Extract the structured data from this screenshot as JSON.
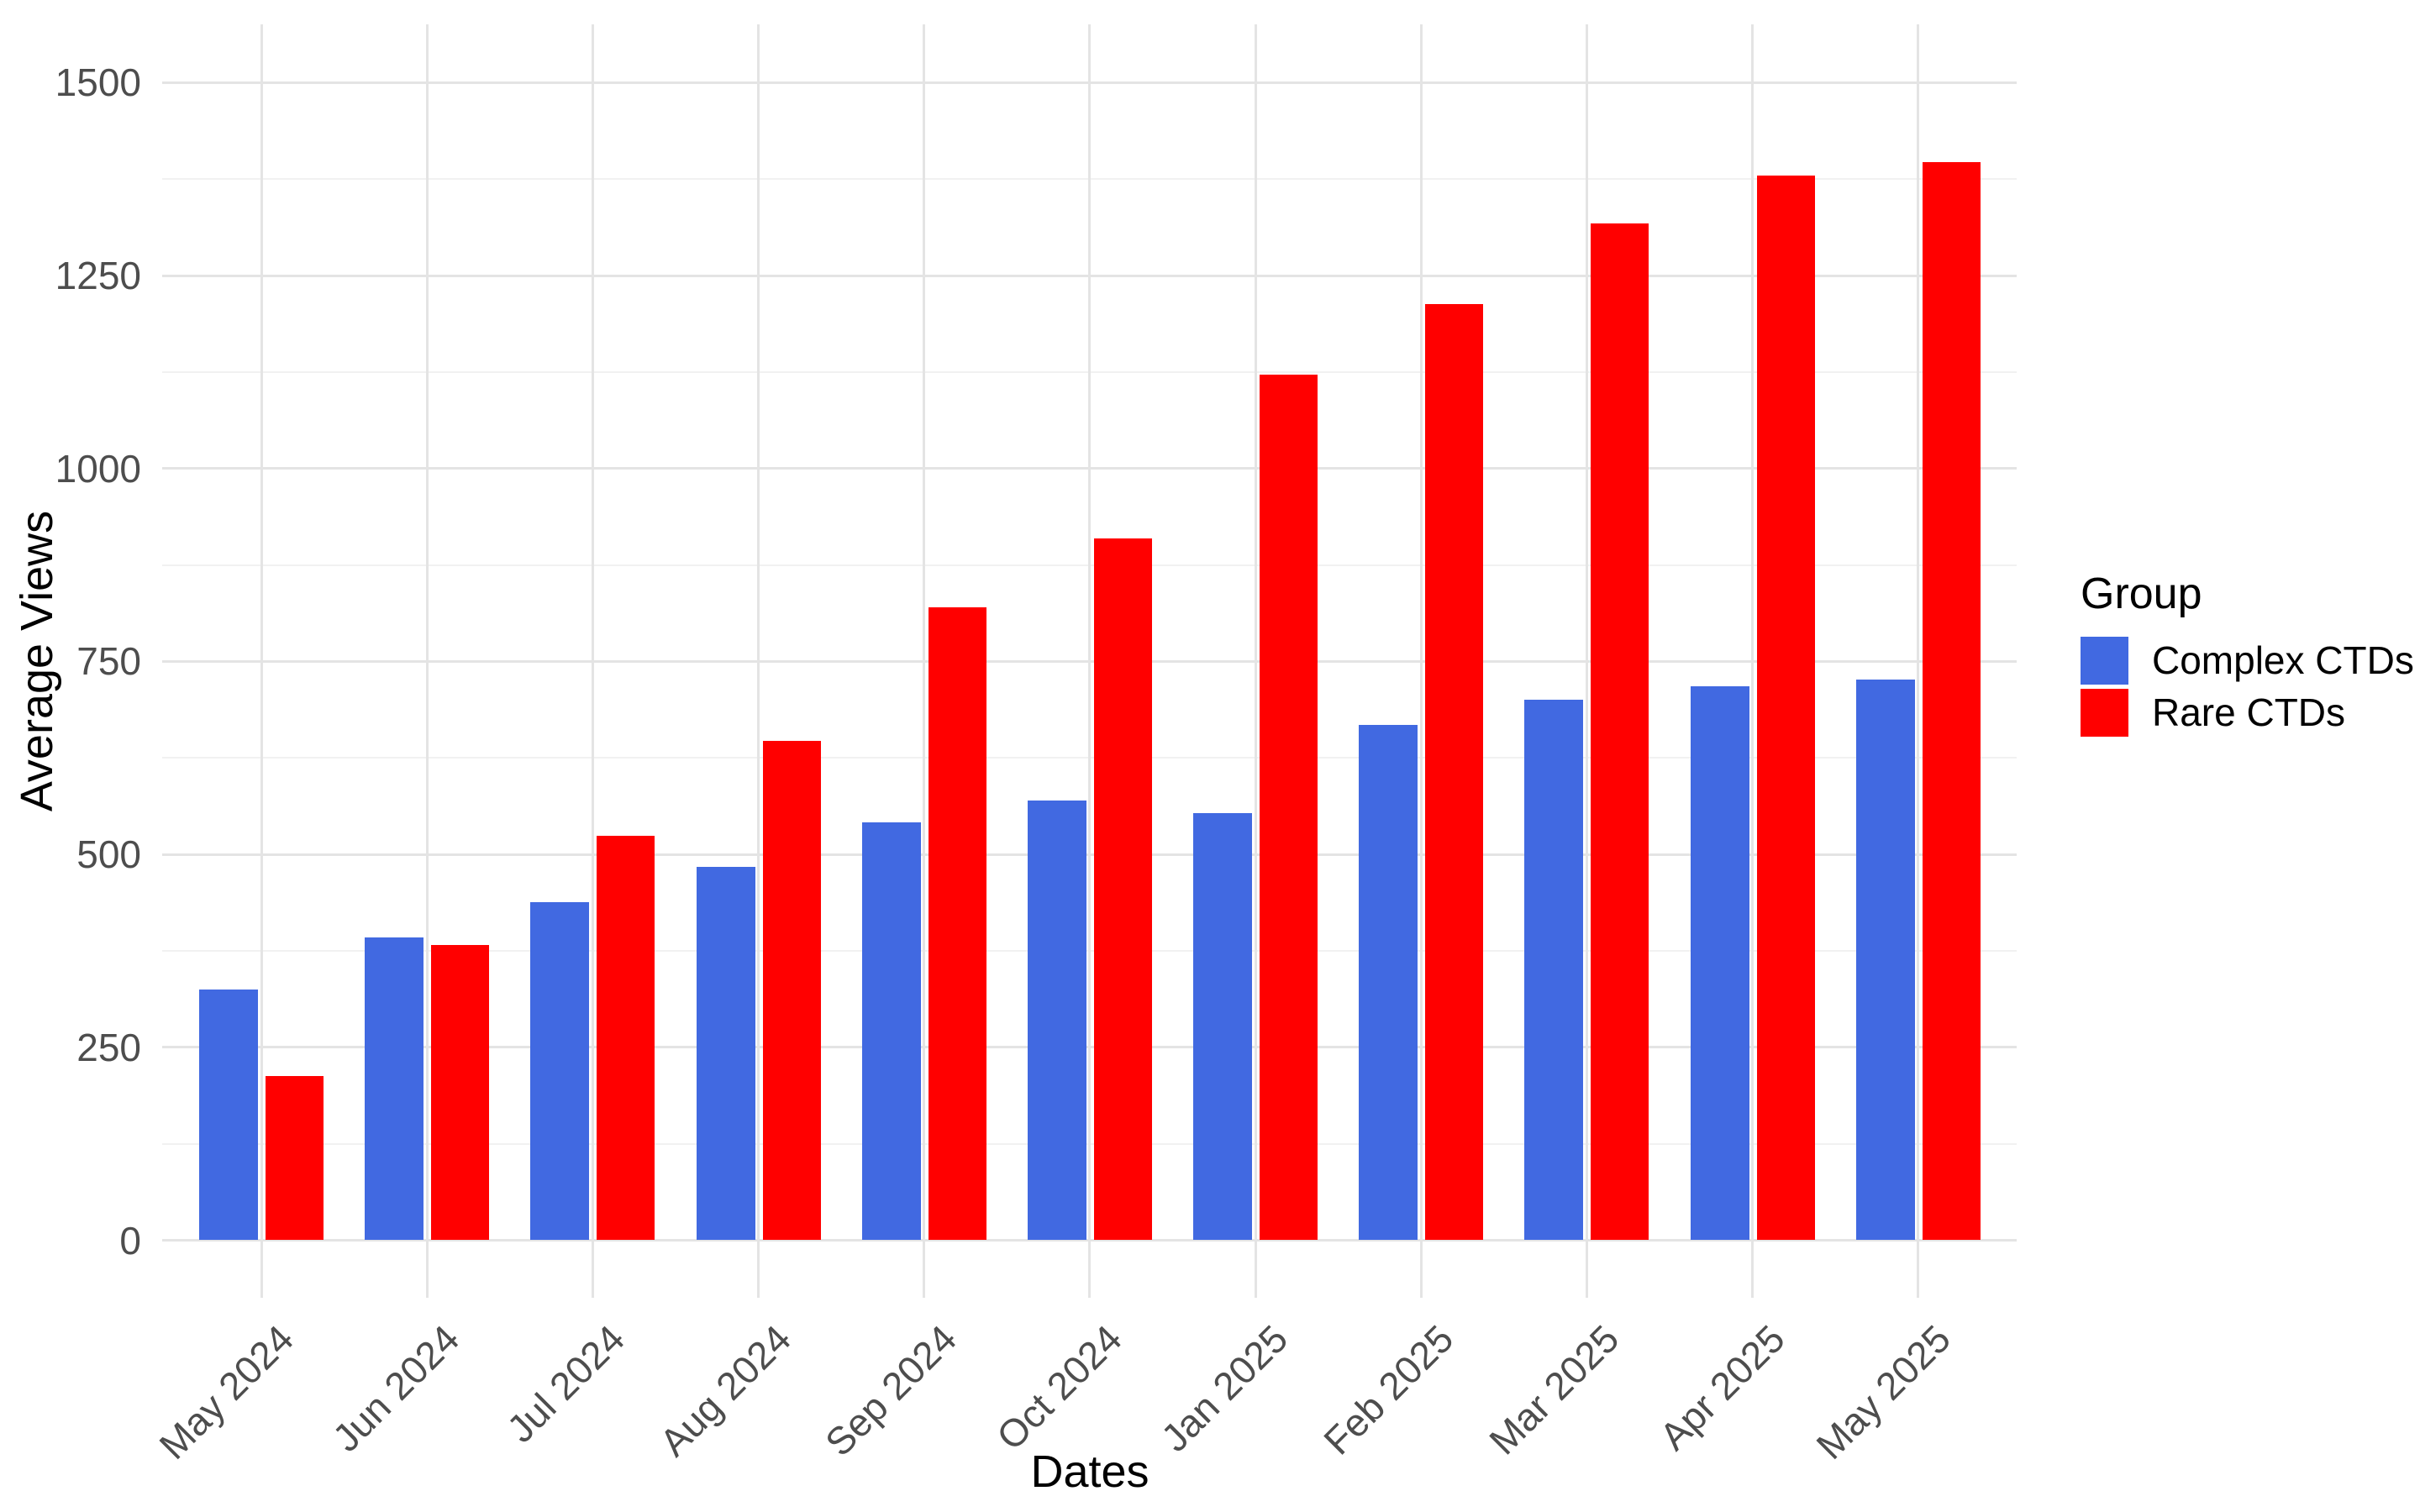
{
  "chart_data": {
    "type": "bar",
    "title": "",
    "xlabel": "Dates",
    "ylabel": "Average Views",
    "categories": [
      "May 2024",
      "Jun 2024",
      "Jul 2024",
      "Aug 2024",
      "Sep 2024",
      "Oct 2024",
      "Jan 2025",
      "Feb 2025",
      "Mar 2025",
      "Apr 2025",
      "May 2025"
    ],
    "series": [
      {
        "name": "Complex CTDs",
        "color": "#4169E1",
        "values": [
          325,
          392,
          438,
          484,
          541,
          570,
          553,
          668,
          700,
          718,
          727
        ]
      },
      {
        "name": "Rare CTDs",
        "color": "#FF0000",
        "values": [
          213,
          383,
          524,
          647,
          820,
          909,
          1122,
          1213,
          1318,
          1380,
          1397
        ]
      }
    ],
    "ylim": [
      0,
      1500
    ],
    "yticks": [
      0,
      250,
      500,
      750,
      1000,
      1250,
      1500
    ],
    "grid": "major+minor",
    "legend": {
      "title": "Group",
      "position": "right"
    }
  }
}
